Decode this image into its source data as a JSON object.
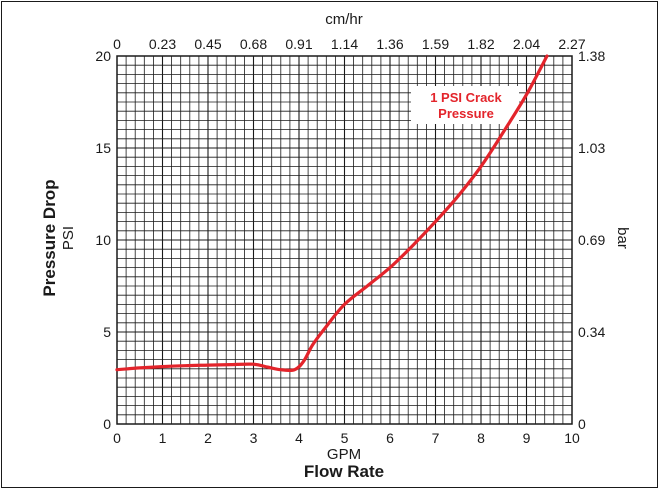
{
  "chart_data": {
    "type": "line",
    "xlabel": "Flow Rate",
    "x_unit": "GPM",
    "ylabel": "Pressure Drop",
    "y_unit": "PSI",
    "x2_unit": "cm/hr",
    "y2_unit": "bar",
    "xlim": [
      0,
      10
    ],
    "ylim": [
      0,
      20
    ],
    "x_ticks": [
      "0",
      "1",
      "2",
      "3",
      "4",
      "5",
      "6",
      "7",
      "8",
      "9",
      "10"
    ],
    "y_ticks": [
      "0",
      "5",
      "10",
      "15",
      "20"
    ],
    "x2_ticks": [
      "0",
      "0.23",
      "0.45",
      "0.68",
      "0.91",
      "1.14",
      "1.36",
      "1.59",
      "1.82",
      "2.04",
      "2.27"
    ],
    "y2_ticks": [
      "0",
      "0.34",
      "0.69",
      "1.03",
      "1.38"
    ],
    "grid": true,
    "annotation": [
      "1 PSI Crack",
      "Pressure"
    ],
    "line_color": "#e3242b",
    "series": [
      {
        "x": [
          0,
          0.5,
          1,
          1.5,
          2,
          2.5,
          3,
          3.3,
          3.6,
          3.9,
          4.1,
          4.3,
          4.6,
          5,
          5.5,
          6,
          6.5,
          7,
          7.5,
          8,
          8.5,
          9,
          9.45
        ],
        "y": [
          2.95,
          3.05,
          3.12,
          3.17,
          3.2,
          3.23,
          3.25,
          3.1,
          2.95,
          2.95,
          3.4,
          4.3,
          5.3,
          6.5,
          7.5,
          8.5,
          9.7,
          11.0,
          12.4,
          14.0,
          15.9,
          17.9,
          20.0
        ]
      }
    ]
  }
}
